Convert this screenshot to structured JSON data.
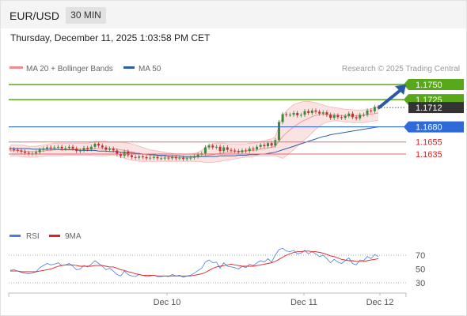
{
  "header": {
    "symbol": "EUR/USD",
    "timeframe": "30 MIN"
  },
  "timestamp": "Thursday, December 11, 2025 1:03:58 PM CET",
  "legend": {
    "items": [
      {
        "label": "MA 20 + Bollinger Bands",
        "color": "#f08c8c"
      },
      {
        "label": "MA 50",
        "color": "#2f5ba8"
      }
    ],
    "credit": "Research © 2025 Trading Central"
  },
  "rsi_legend": {
    "items": [
      {
        "label": "RSI",
        "color": "#4c7fd8"
      },
      {
        "label": "9MA",
        "color": "#dd2222"
      }
    ]
  },
  "chart_data": [
    {
      "type": "candlestick",
      "ylim": [
        1.162,
        1.1755
      ],
      "levels": [
        {
          "value": 1.175,
          "label": "1.1750",
          "color": "#59a81c",
          "style": "resistance"
        },
        {
          "value": 1.1725,
          "label": "1.1725",
          "color": "#59a81c",
          "style": "resistance"
        },
        {
          "value": 1.1712,
          "label": "1.1712",
          "color": "#333333",
          "style": "last-price"
        },
        {
          "value": 1.168,
          "label": "1.1680",
          "color": "#2f6bd8",
          "style": "pivot"
        },
        {
          "value": 1.1655,
          "label": "1.1655",
          "color": "#e06a6a",
          "style": "support"
        },
        {
          "value": 1.1635,
          "label": "1.1635",
          "color": "#e06a6a",
          "style": "support"
        }
      ],
      "x_ticks": [
        "Dec 10",
        "Dec 11",
        "Dec 12"
      ],
      "close": [
        1.1643,
        1.1642,
        1.1641,
        1.1639,
        1.1637,
        1.1636,
        1.1636,
        1.1638,
        1.1642,
        1.1644,
        1.1646,
        1.1645,
        1.1646,
        1.1647,
        1.1644,
        1.1645,
        1.1647,
        1.1644,
        1.164,
        1.1641,
        1.1645,
        1.1643,
        1.1647,
        1.1652,
        1.1649,
        1.1646,
        1.1642,
        1.1644,
        1.1641,
        1.1635,
        1.1632,
        1.1639,
        1.1633,
        1.163,
        1.1629,
        1.1631,
        1.163,
        1.1628,
        1.1629,
        1.163,
        1.1628,
        1.1628,
        1.1629,
        1.1628,
        1.163,
        1.1628,
        1.1629,
        1.1627,
        1.1628,
        1.1629,
        1.1631,
        1.1634,
        1.1636,
        1.1646,
        1.1649,
        1.1646,
        1.1647,
        1.164,
        1.1646,
        1.1642,
        1.1641,
        1.164,
        1.1638,
        1.1641,
        1.164,
        1.1644,
        1.1643,
        1.1647,
        1.165,
        1.1648,
        1.1653,
        1.1649,
        1.1658,
        1.1688,
        1.1701,
        1.17,
        1.17,
        1.1703,
        1.1699,
        1.17,
        1.1706,
        1.1703,
        1.1707,
        1.1705,
        1.1702,
        1.1704,
        1.17,
        1.1695,
        1.1699,
        1.1696,
        1.1695,
        1.1698,
        1.1702,
        1.1696,
        1.1694,
        1.17,
        1.17,
        1.1707,
        1.1706,
        1.1713,
        1.1712
      ],
      "ma20": [
        1.164,
        1.1641,
        1.1641,
        1.164,
        1.164,
        1.1639,
        1.1639,
        1.1639,
        1.164,
        1.164,
        1.1641,
        1.1641,
        1.1642,
        1.1642,
        1.1642,
        1.1643,
        1.1643,
        1.1643,
        1.1643,
        1.1643,
        1.1643,
        1.1643,
        1.1643,
        1.1644,
        1.1644,
        1.1644,
        1.1644,
        1.1644,
        1.1644,
        1.1643,
        1.1642,
        1.1641,
        1.164,
        1.1639,
        1.1637,
        1.1636,
        1.1635,
        1.1634,
        1.1633,
        1.1632,
        1.1632,
        1.1631,
        1.1631,
        1.163,
        1.163,
        1.1629,
        1.1629,
        1.1629,
        1.1629,
        1.1629,
        1.163,
        1.163,
        1.1631,
        1.1632,
        1.1633,
        1.1634,
        1.1635,
        1.1636,
        1.1637,
        1.1638,
        1.1638,
        1.1639,
        1.1639,
        1.164,
        1.164,
        1.1641,
        1.1641,
        1.1642,
        1.1643,
        1.1644,
        1.1645,
        1.1646,
        1.1648,
        1.1656,
        1.1664,
        1.167,
        1.1675,
        1.168,
        1.1684,
        1.1688,
        1.1691,
        1.1694,
        1.1697,
        1.1699,
        1.17,
        1.1701,
        1.1701,
        1.17,
        1.17,
        1.1699,
        1.1699,
        1.1698,
        1.1698,
        1.1698,
        1.1698,
        1.1698,
        1.1699,
        1.17,
        1.1701,
        1.1702,
        1.1703
      ],
      "bb_upper": [
        1.165,
        1.165,
        1.165,
        1.165,
        1.1649,
        1.1648,
        1.1648,
        1.1648,
        1.1649,
        1.165,
        1.1651,
        1.1652,
        1.1653,
        1.1653,
        1.1653,
        1.1653,
        1.1653,
        1.1653,
        1.1653,
        1.1653,
        1.1653,
        1.1653,
        1.1654,
        1.1656,
        1.1656,
        1.1656,
        1.1656,
        1.1655,
        1.1655,
        1.1655,
        1.1655,
        1.1654,
        1.1653,
        1.1652,
        1.165,
        1.1648,
        1.1646,
        1.1644,
        1.1642,
        1.1641,
        1.164,
        1.1639,
        1.1638,
        1.1637,
        1.1636,
        1.1635,
        1.1635,
        1.1635,
        1.1635,
        1.1635,
        1.1636,
        1.1638,
        1.1641,
        1.1646,
        1.165,
        1.1652,
        1.1653,
        1.1653,
        1.1653,
        1.1652,
        1.1652,
        1.1652,
        1.1652,
        1.1652,
        1.1652,
        1.1653,
        1.1653,
        1.1654,
        1.1656,
        1.1657,
        1.1659,
        1.166,
        1.1664,
        1.168,
        1.1698,
        1.1706,
        1.1712,
        1.1717,
        1.1719,
        1.1721,
        1.1722,
        1.1722,
        1.1721,
        1.172,
        1.1718,
        1.1716,
        1.1714,
        1.1713,
        1.1712,
        1.1711,
        1.171,
        1.1709,
        1.1709,
        1.1708,
        1.1708,
        1.1708,
        1.1708,
        1.1709,
        1.171,
        1.1712,
        1.1714
      ],
      "bb_lower": [
        1.1631,
        1.1632,
        1.1632,
        1.1631,
        1.163,
        1.163,
        1.163,
        1.163,
        1.1631,
        1.1631,
        1.1632,
        1.1632,
        1.1632,
        1.1632,
        1.1632,
        1.1633,
        1.1633,
        1.1633,
        1.1633,
        1.1633,
        1.1633,
        1.1633,
        1.1633,
        1.1632,
        1.1632,
        1.1632,
        1.1632,
        1.1633,
        1.1633,
        1.1632,
        1.163,
        1.1628,
        1.1626,
        1.1625,
        1.1624,
        1.1623,
        1.1623,
        1.1623,
        1.1623,
        1.1623,
        1.1623,
        1.1623,
        1.1623,
        1.1623,
        1.1623,
        1.1623,
        1.1623,
        1.1623,
        1.1623,
        1.1623,
        1.1623,
        1.1623,
        1.1622,
        1.1621,
        1.1621,
        1.1621,
        1.1622,
        1.1623,
        1.1624,
        1.1625,
        1.1626,
        1.1627,
        1.1628,
        1.1629,
        1.163,
        1.163,
        1.1631,
        1.1632,
        1.1632,
        1.1632,
        1.1632,
        1.1632,
        1.1632,
        1.163,
        1.1628,
        1.1632,
        1.1637,
        1.1642,
        1.1648,
        1.1654,
        1.1659,
        1.1664,
        1.167,
        1.1676,
        1.1681,
        1.1685,
        1.1688,
        1.1689,
        1.169,
        1.169,
        1.1689,
        1.1688,
        1.1688,
        1.1687,
        1.1687,
        1.1687,
        1.1687,
        1.1688,
        1.1689,
        1.169,
        1.1691
      ],
      "ma50": [
        1.1644,
        1.1644,
        1.1644,
        1.1644,
        1.1644,
        1.1644,
        1.1643,
        1.1643,
        1.1643,
        1.1643,
        1.1643,
        1.1643,
        1.1643,
        1.1643,
        1.1642,
        1.1642,
        1.1642,
        1.1642,
        1.1642,
        1.1641,
        1.1641,
        1.1641,
        1.1641,
        1.1641,
        1.164,
        1.164,
        1.164,
        1.1639,
        1.1639,
        1.1639,
        1.1638,
        1.1638,
        1.1637,
        1.1637,
        1.1636,
        1.1636,
        1.1635,
        1.1635,
        1.1634,
        1.1634,
        1.1633,
        1.1633,
        1.1633,
        1.1632,
        1.1632,
        1.1632,
        1.1632,
        1.1631,
        1.1631,
        1.1631,
        1.1631,
        1.1631,
        1.1631,
        1.1631,
        1.1631,
        1.1631,
        1.1631,
        1.1632,
        1.1632,
        1.1632,
        1.1632,
        1.1632,
        1.1633,
        1.1633,
        1.1633,
        1.1634,
        1.1634,
        1.1634,
        1.1635,
        1.1635,
        1.1636,
        1.1637,
        1.1638,
        1.164,
        1.1642,
        1.1644,
        1.1646,
        1.1648,
        1.165,
        1.1652,
        1.1654,
        1.1656,
        1.1658,
        1.166,
        1.1662,
        1.1664,
        1.1665,
        1.1667,
        1.1668,
        1.1669,
        1.167,
        1.1671,
        1.1672,
        1.1673,
        1.1674,
        1.1675,
        1.1676,
        1.1677,
        1.1678,
        1.1679,
        1.168
      ],
      "projection": {
        "from": 1.1712,
        "to": 1.175
      }
    },
    {
      "type": "line",
      "ylim": [
        20,
        80
      ],
      "y_ticks": [
        70,
        50,
        30
      ],
      "series": [
        {
          "name": "RSI",
          "values": [
            48,
            49,
            47,
            45,
            44,
            43,
            44,
            46,
            52,
            55,
            58,
            56,
            57,
            59,
            55,
            56,
            58,
            54,
            49,
            50,
            55,
            53,
            57,
            62,
            58,
            54,
            49,
            51,
            47,
            42,
            40,
            47,
            42,
            40,
            39,
            42,
            41,
            39,
            40,
            41,
            39,
            39,
            40,
            39,
            42,
            40,
            41,
            38,
            40,
            41,
            44,
            48,
            51,
            60,
            63,
            59,
            60,
            51,
            59,
            54,
            53,
            52,
            50,
            54,
            52,
            57,
            55,
            59,
            62,
            60,
            65,
            60,
            70,
            78,
            80,
            76,
            75,
            77,
            72,
            73,
            77,
            72,
            75,
            72,
            68,
            70,
            65,
            59,
            64,
            60,
            58,
            62,
            66,
            58,
            56,
            63,
            62,
            68,
            65,
            71,
            68
          ]
        },
        {
          "name": "9MA",
          "values": [
            47,
            47,
            47,
            46,
            46,
            46,
            46,
            46,
            47,
            48,
            49,
            50,
            52,
            54,
            55,
            56,
            56,
            56,
            55,
            54,
            54,
            54,
            54,
            55,
            55,
            55,
            54,
            53,
            53,
            51,
            49,
            48,
            46,
            45,
            43,
            42,
            41,
            41,
            41,
            41,
            40,
            40,
            40,
            40,
            40,
            40,
            40,
            40,
            40,
            40,
            41,
            42,
            43,
            45,
            48,
            51,
            53,
            54,
            55,
            56,
            57,
            56,
            55,
            54,
            54,
            54,
            54,
            55,
            56,
            57,
            58,
            59,
            61,
            64,
            67,
            70,
            72,
            74,
            75,
            75,
            76,
            76,
            75,
            75,
            74,
            73,
            71,
            69,
            68,
            66,
            64,
            63,
            62,
            62,
            61,
            61,
            61,
            62,
            63,
            64,
            65
          ]
        }
      ]
    }
  ]
}
